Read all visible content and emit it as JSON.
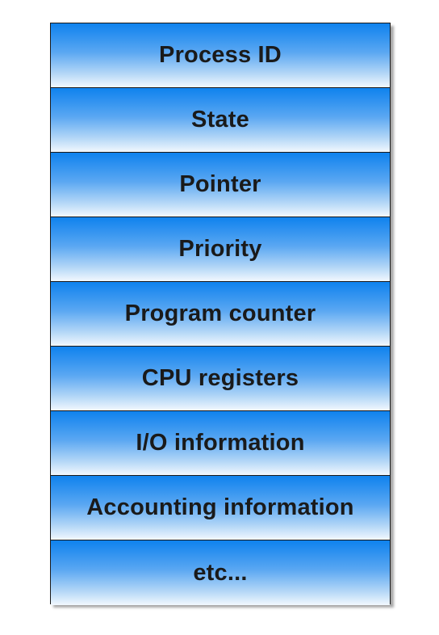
{
  "pcb": {
    "fields": [
      {
        "label": "Process ID"
      },
      {
        "label": "State"
      },
      {
        "label": "Pointer"
      },
      {
        "label": "Priority"
      },
      {
        "label": "Program counter"
      },
      {
        "label": "CPU registers"
      },
      {
        "label": "I/O information"
      },
      {
        "label": "Accounting information"
      },
      {
        "label": "etc..."
      }
    ]
  },
  "colors": {
    "gradient_top": "#0f82ee",
    "gradient_bottom": "#f2f8fe",
    "border": "#1a1a1a",
    "text": "#1a1a1a"
  }
}
